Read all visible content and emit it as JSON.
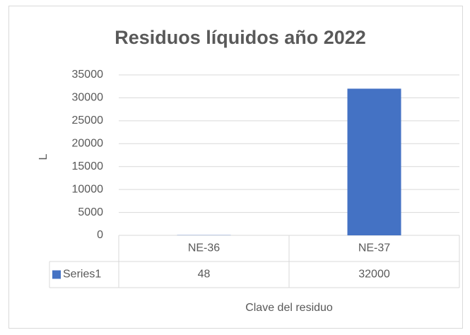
{
  "chart_data": {
    "type": "bar",
    "title": "Residuos líquidos año 2022",
    "categories": [
      "NE-36",
      "NE-37"
    ],
    "series": [
      {
        "name": "Series1",
        "color": "#4472c4",
        "values": [
          48,
          32000
        ]
      }
    ],
    "ylim": [
      0,
      35000
    ],
    "yticks": [
      0,
      5000,
      10000,
      15000,
      20000,
      25000,
      30000,
      35000
    ],
    "x_label": "Clave del residuo",
    "y_label": "L",
    "grid": true,
    "data_table": true
  }
}
